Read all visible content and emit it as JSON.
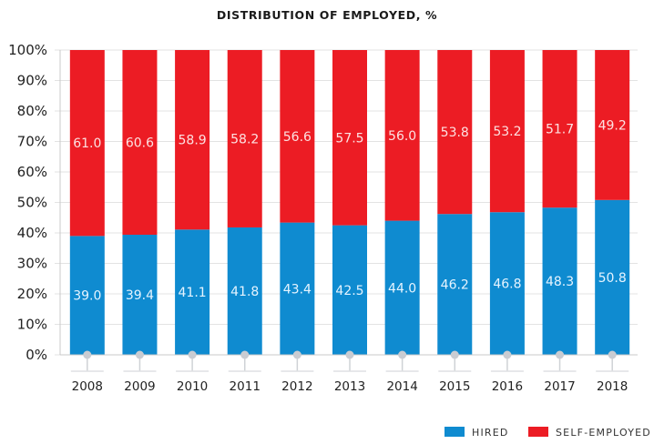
{
  "chart_data": {
    "type": "bar",
    "stacked": true,
    "title": "DISTRIBUTION OF EMPLOYED, %",
    "xlabel": "",
    "ylabel": "",
    "categories": [
      "2008",
      "2009",
      "2010",
      "2011",
      "2012",
      "2013",
      "2014",
      "2015",
      "2016",
      "2017",
      "2018"
    ],
    "series": [
      {
        "name": "HIRED",
        "color": "#0f8bd0",
        "label_color": "#e6f4ff",
        "values": [
          39.0,
          39.4,
          41.1,
          41.8,
          43.4,
          42.5,
          44.0,
          46.2,
          46.8,
          48.3,
          50.8
        ]
      },
      {
        "name": "SELF-EMPLOYED",
        "color": "#ec1c24",
        "label_color": "#fde2e2",
        "values": [
          61.0,
          60.6,
          58.9,
          58.2,
          56.6,
          57.5,
          56.0,
          53.8,
          53.2,
          51.7,
          49.2
        ]
      }
    ],
    "data_labels": {
      "HIRED": [
        "39.0",
        "39.4",
        "41.1",
        "41.8",
        "43.4",
        "42.5",
        "44.0",
        "46.2",
        "46.8",
        "48.3",
        "50.8"
      ],
      "SELF-EMPLOYED": [
        "61.0",
        "60.6",
        "58.9",
        "58.2",
        "56.6",
        "57.5",
        "56.0",
        "53.8",
        "53.2",
        "51.7",
        "49.2"
      ]
    },
    "yticks": [
      "0%",
      "10%",
      "20%",
      "30%",
      "40%",
      "50%",
      "60%",
      "70%",
      "80%",
      "90%",
      "100%"
    ],
    "ylim": [
      0,
      100
    ],
    "grid": true,
    "legend": {
      "position": "bottom-right",
      "entries": [
        "HIRED",
        "SELF-EMPLOYED"
      ]
    }
  }
}
